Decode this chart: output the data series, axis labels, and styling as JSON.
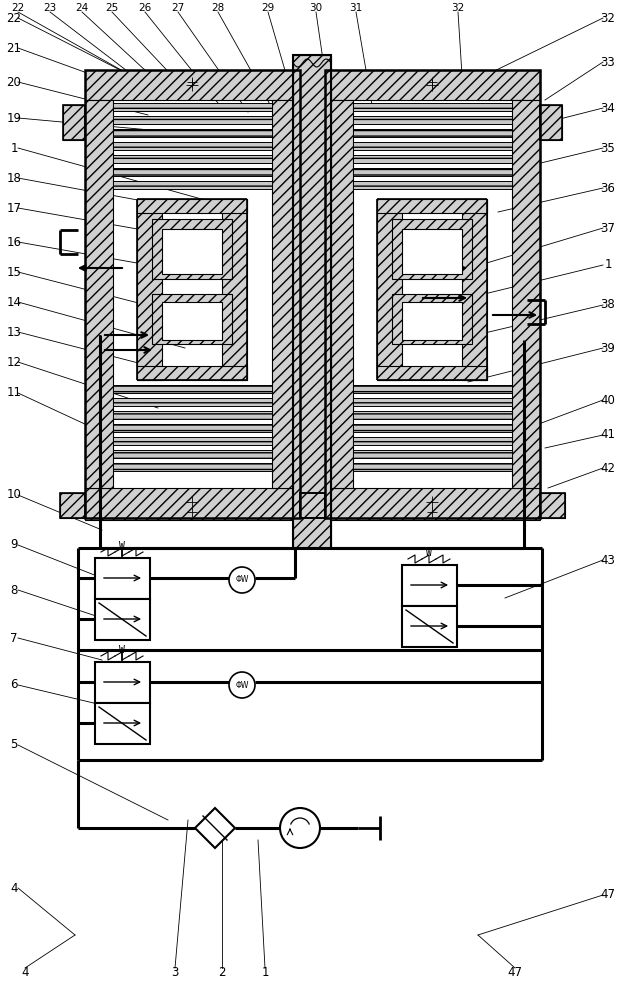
{
  "bg_color": "#ffffff",
  "lw_thin": 0.7,
  "lw_med": 1.2,
  "lw_thick": 2.2,
  "hatch_pattern": "///",
  "hatch_color": "#333333",
  "labels_left": [
    [
      "22",
      14,
      18
    ],
    [
      "21",
      14,
      48
    ],
    [
      "20",
      14,
      82
    ],
    [
      "19",
      14,
      118
    ],
    [
      "1",
      14,
      148
    ],
    [
      "18",
      14,
      178
    ],
    [
      "17",
      14,
      208
    ],
    [
      "16",
      14,
      242
    ],
    [
      "15",
      14,
      272
    ],
    [
      "14",
      14,
      302
    ],
    [
      "13",
      14,
      332
    ],
    [
      "12",
      14,
      362
    ],
    [
      "11",
      14,
      393
    ],
    [
      "10",
      14,
      495
    ],
    [
      "9",
      14,
      545
    ],
    [
      "8",
      14,
      590
    ],
    [
      "7",
      14,
      638
    ],
    [
      "6",
      14,
      685
    ],
    [
      "5",
      14,
      745
    ],
    [
      "4",
      14,
      888
    ]
  ],
  "labels_right": [
    [
      "32",
      608,
      18
    ],
    [
      "33",
      608,
      62
    ],
    [
      "34",
      608,
      108
    ],
    [
      "35",
      608,
      148
    ],
    [
      "36",
      608,
      188
    ],
    [
      "37",
      608,
      228
    ],
    [
      "1",
      608,
      265
    ],
    [
      "38",
      608,
      305
    ],
    [
      "39",
      608,
      348
    ],
    [
      "40",
      608,
      400
    ],
    [
      "41",
      608,
      435
    ],
    [
      "42",
      608,
      468
    ],
    [
      "43",
      608,
      560
    ],
    [
      "47",
      608,
      895
    ]
  ],
  "labels_top": [
    [
      "22",
      18,
      8
    ],
    [
      "23",
      50,
      8
    ],
    [
      "24",
      82,
      8
    ],
    [
      "25",
      112,
      8
    ],
    [
      "26",
      145,
      8
    ],
    [
      "27",
      178,
      8
    ],
    [
      "28",
      218,
      8
    ],
    [
      "29",
      268,
      8
    ],
    [
      "30",
      316,
      8
    ],
    [
      "31",
      356,
      8
    ],
    [
      "32",
      458,
      8
    ]
  ],
  "labels_bottom": [
    [
      "4",
      25,
      972
    ],
    [
      "3",
      175,
      972
    ],
    [
      "2",
      222,
      972
    ],
    [
      "1",
      265,
      972
    ],
    [
      "47",
      515,
      972
    ]
  ]
}
